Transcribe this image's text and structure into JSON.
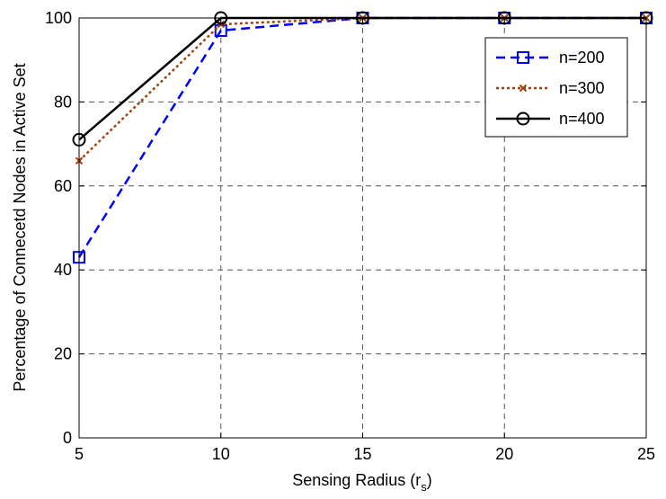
{
  "chart_data": {
    "type": "line",
    "title": "",
    "xlabel": "Sensing Radius (r",
    "xlabel_subscript": "s",
    "xlabel_suffix": ")",
    "ylabel": "Percentage of Connecetd Nodes in Active Set",
    "xlim": [
      5,
      25
    ],
    "ylim": [
      0,
      100
    ],
    "xticks": [
      5,
      10,
      15,
      20,
      25
    ],
    "yticks": [
      0,
      20,
      40,
      60,
      80,
      100
    ],
    "grid": true,
    "legend_position": "top-right",
    "x": [
      5,
      10,
      15,
      20,
      25
    ],
    "series": [
      {
        "name": "n=200",
        "values": [
          43,
          97,
          100,
          100,
          100
        ],
        "color": "#0000ff",
        "line_style": "dashed",
        "marker": "square"
      },
      {
        "name": "n=300",
        "values": [
          66,
          98.5,
          100,
          100,
          100
        ],
        "color": "#a0420f",
        "line_style": "dotted",
        "marker": "x"
      },
      {
        "name": "n=400",
        "values": [
          71,
          100,
          100,
          100,
          100
        ],
        "color": "#000000",
        "line_style": "solid",
        "marker": "circle"
      }
    ]
  }
}
